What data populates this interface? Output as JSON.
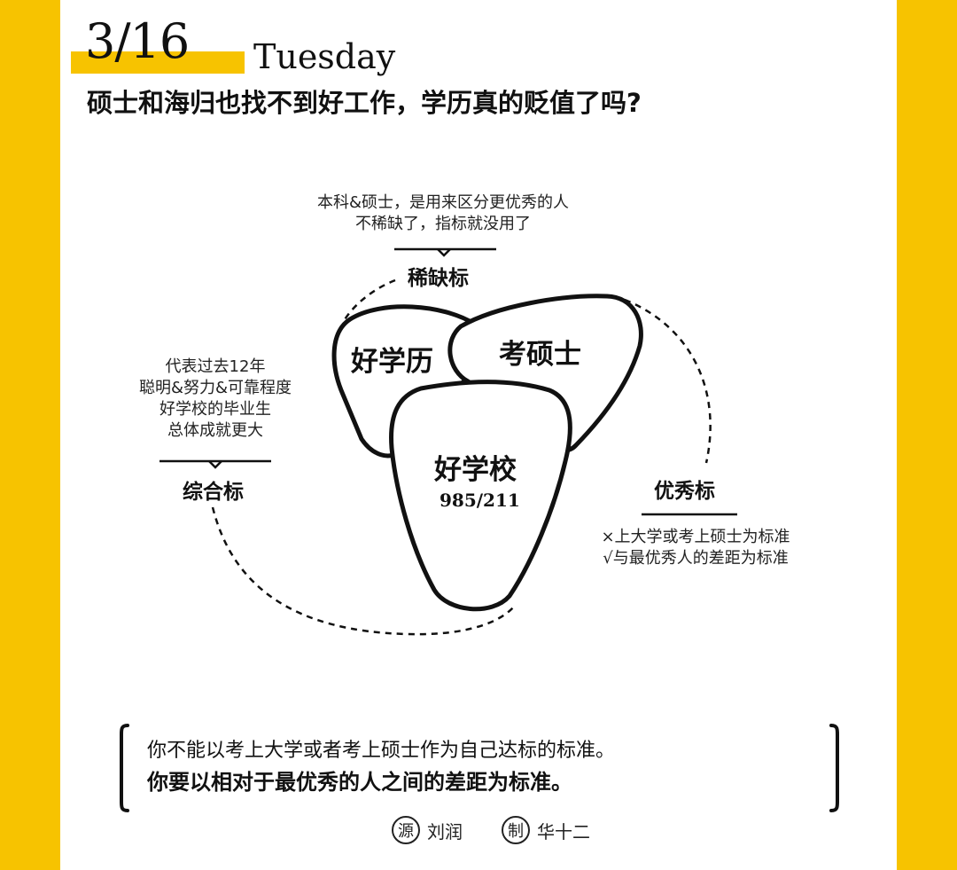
{
  "header": {
    "date": "3/16",
    "weekday": "Tuesday",
    "title": "硕士和海归也找不到好工作，学历真的贬值了吗?"
  },
  "diagram": {
    "shapes": {
      "good_degree": "好学历",
      "masters": "考硕士",
      "good_school": "好学校",
      "good_school_sub": "985/211"
    },
    "scarcity": {
      "label": "稀缺标",
      "note_lines": [
        "本科&硕士，是用来区分更优秀的人",
        "不稀缺了，指标就没用了"
      ]
    },
    "composite": {
      "label": "综合标",
      "note_lines": [
        "代表过去12年",
        "聪明&努力&可靠程度",
        "好学校的毕业生",
        "总体成就更大"
      ]
    },
    "excellence": {
      "label": "优秀标",
      "note_lines": [
        "×上大学或考上硕士为标准",
        "√与最优秀人的差距为标准"
      ]
    }
  },
  "quote": {
    "line1": "你不能以考上大学或者考上硕士作为自己达标的标准。",
    "line2": "你要以相对于最优秀的人之间的差距为标准。"
  },
  "credits": {
    "source_mark": "源",
    "source_name": "刘润",
    "maker_mark": "制",
    "maker_name": "华十二"
  },
  "colors": {
    "accent": "#F7C300",
    "ink": "#111111",
    "paper": "#FFFFFF"
  }
}
